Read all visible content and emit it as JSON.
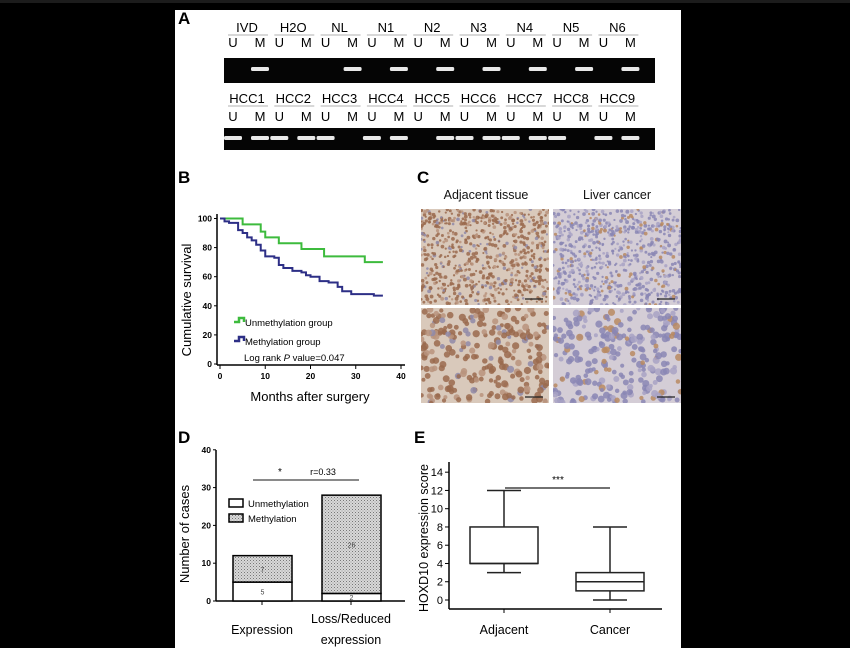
{
  "panels": {
    "A": {
      "letter": "A",
      "row1": {
        "groups": [
          "IVD",
          "H2O",
          "NL",
          "N1",
          "N2",
          "N3",
          "N4",
          "N5",
          "N6"
        ],
        "lane_labels": [
          "U",
          "M"
        ],
        "bands": [
          [
            0,
            1
          ],
          [
            0,
            0
          ],
          [
            0,
            1
          ],
          [
            0,
            1
          ],
          [
            0,
            1
          ],
          [
            0,
            1
          ],
          [
            0,
            1
          ],
          [
            0,
            1
          ],
          [
            0,
            1
          ]
        ]
      },
      "row2": {
        "groups": [
          "HCC1",
          "HCC2",
          "HCC3",
          "HCC4",
          "HCC5",
          "HCC6",
          "HCC7",
          "HCC8",
          "HCC9"
        ],
        "lane_labels": [
          "U",
          "M"
        ],
        "bands": [
          [
            1,
            1
          ],
          [
            1,
            1
          ],
          [
            1,
            0
          ],
          [
            1,
            1
          ],
          [
            0,
            1
          ],
          [
            1,
            1
          ],
          [
            1,
            1
          ],
          [
            1,
            0
          ],
          [
            1,
            1
          ]
        ]
      }
    },
    "B": {
      "letter": "B"
    },
    "C": {
      "letter": "C",
      "col_labels": [
        "Adjacent tissue",
        "Liver cancer"
      ]
    },
    "D": {
      "letter": "D"
    },
    "E": {
      "letter": "E"
    }
  },
  "chart_data": [
    {
      "panel": "B",
      "type": "line",
      "subtype": "kaplan-meier",
      "title": "",
      "xlabel": "Months after surgery",
      "ylabel": "Cumulative survival",
      "xlim": [
        0,
        40
      ],
      "ylim": [
        0,
        100
      ],
      "xticks": [
        0,
        10,
        20,
        30,
        40
      ],
      "yticks": [
        0,
        20,
        40,
        60,
        80,
        100
      ],
      "legend_position": "lower-left",
      "annotation": "Log rank P value=0.047",
      "series": [
        {
          "name": "Unmethylation group",
          "color": "#3dbb3d",
          "x": [
            0,
            5,
            5,
            9,
            9,
            10,
            10,
            13,
            13,
            18,
            18,
            23,
            23,
            32,
            32,
            36
          ],
          "y": [
            100,
            100,
            96,
            96,
            91,
            91,
            87,
            87,
            83,
            83,
            79,
            79,
            74,
            74,
            70,
            70
          ]
        },
        {
          "name": "Methylation group",
          "color": "#2d2f86",
          "x": [
            0,
            1,
            2,
            4,
            5,
            6,
            7,
            8,
            9,
            10,
            12,
            13,
            14,
            16,
            18,
            19,
            20,
            22,
            24,
            26,
            27,
            29,
            34,
            36
          ],
          "y": [
            100,
            98,
            97,
            92,
            90,
            87,
            85,
            82,
            78,
            74,
            73,
            68,
            66,
            64,
            63,
            61,
            60,
            57,
            56,
            53,
            50,
            48,
            47,
            47
          ]
        }
      ]
    },
    {
      "panel": "D",
      "type": "bar",
      "stacked": true,
      "title": "",
      "xlabel": "",
      "ylabel": "Number of cases",
      "ylim": [
        0,
        40
      ],
      "yticks": [
        0,
        10,
        20,
        30,
        40
      ],
      "categories": [
        "Expression",
        "Loss/Reduced expression"
      ],
      "series": [
        {
          "name": "Unmethylation",
          "values": [
            5,
            2
          ],
          "fill": "white"
        },
        {
          "name": "Methylation",
          "values": [
            7,
            26
          ],
          "fill": "dotted-gray"
        }
      ],
      "value_labels": {
        "Expression": [
          "5",
          "7"
        ],
        "Loss/Reduced expression": [
          "2",
          "26"
        ]
      },
      "annotation": {
        "significance": "*",
        "text": "r=0.33"
      },
      "legend_position": "upper-left"
    },
    {
      "panel": "E",
      "type": "box",
      "title": "",
      "xlabel": "",
      "ylabel": "HOXD10 expression score",
      "ylim": [
        0,
        14
      ],
      "yticks": [
        0,
        2,
        4,
        6,
        8,
        10,
        12,
        14
      ],
      "categories": [
        "Adjacent",
        "Cancer"
      ],
      "boxes": [
        {
          "name": "Adjacent",
          "min": 3,
          "q1": 4,
          "median": 4,
          "q3": 8,
          "max": 12
        },
        {
          "name": "Cancer",
          "min": 0,
          "q1": 1,
          "median": 2,
          "q3": 3,
          "max": 8
        }
      ],
      "annotation": {
        "significance": "***"
      }
    }
  ],
  "labels": {
    "B": {
      "ylabel": "Cumulative survival",
      "xlabel": "Months after surgery",
      "legend1": "Unmethylation group",
      "legend2": "Methylation group",
      "logrank_prefix": "Log rank ",
      "logrank_p": "P",
      "logrank_suffix": " value=0.047",
      "xticks": [
        "0",
        "10",
        "20",
        "30",
        "40"
      ],
      "yticks": [
        "0",
        "20",
        "40",
        "60",
        "80",
        "100"
      ]
    },
    "D": {
      "ylabel": "Number of cases",
      "legend1": "Unmethylation",
      "legend2": "Methylation",
      "sig": "*",
      "r": "r=0.33",
      "cat1": "Expression",
      "cat2a": "Loss/Reduced",
      "cat2b": "expression",
      "v_expr_u": "5",
      "v_expr_m": "7",
      "v_loss_u": "2",
      "v_loss_m": "26",
      "yticks": [
        "0",
        "10",
        "20",
        "30",
        "40"
      ]
    },
    "E": {
      "ylabel": "HOXD10 expression score",
      "sig": "***",
      "cat1": "Adjacent",
      "cat2": "Cancer",
      "yticks": [
        "0",
        "2",
        "4",
        "6",
        "8",
        "10",
        "12",
        "14"
      ]
    }
  }
}
